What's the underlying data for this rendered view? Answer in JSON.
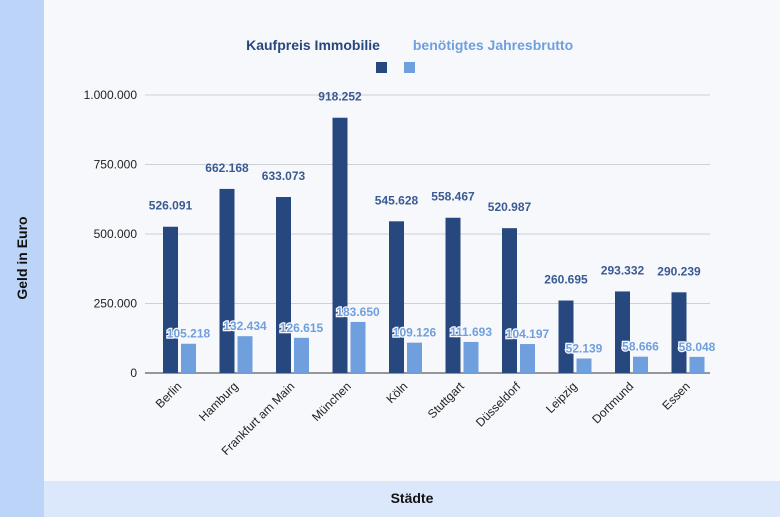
{
  "chart_data": {
    "type": "bar",
    "title": "",
    "xlabel": "Städte",
    "ylabel": "Geld in Euro",
    "ylim": [
      0,
      1000000
    ],
    "yticks": [
      {
        "value": 0,
        "label": "0"
      },
      {
        "value": 250000,
        "label": "250.000"
      },
      {
        "value": 500000,
        "label": "500.000"
      },
      {
        "value": 750000,
        "label": "750.000"
      },
      {
        "value": 1000000,
        "label": "1.000.000"
      }
    ],
    "categories": [
      "Berlin",
      "Hamburg",
      "Frankfurt am Main",
      "München",
      "Köln",
      "Stuttgart",
      "Düsseldorf",
      "Leipzig",
      "Dortmund",
      "Essen"
    ],
    "series": [
      {
        "name": "Kaufpreis Immobilie",
        "color": "#27477f",
        "values": [
          526091,
          662168,
          633073,
          918252,
          545628,
          558467,
          520987,
          260695,
          293332,
          290239
        ],
        "labels": [
          "526.091",
          "662.168",
          "633.073",
          "918.252",
          "545.628",
          "558.467",
          "520.987",
          "260.695",
          "293.332",
          "290.239"
        ]
      },
      {
        "name": "benötigtes Jahresbrutto",
        "color": "#6f9fdc",
        "values": [
          105218,
          132434,
          126615,
          183650,
          109126,
          111693,
          104197,
          52139,
          58666,
          58048
        ],
        "labels": [
          "105.218",
          "132.434",
          "126.615",
          "183.650",
          "109.126",
          "111.693",
          "104.197",
          "52.139",
          "58.666",
          "58.048"
        ]
      }
    ],
    "legend_position": "top-center",
    "grid": true
  }
}
